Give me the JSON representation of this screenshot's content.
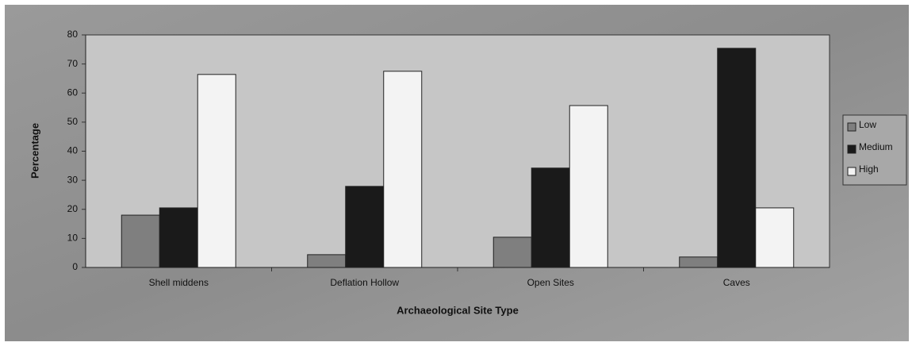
{
  "chart_data": {
    "type": "bar",
    "x_label": "Archaeological Site Type",
    "y_label": "Percentage",
    "categories": [
      "Shell middens",
      "Deflation Hollow",
      "Open Sites",
      "Caves"
    ],
    "series": [
      {
        "name": "Low",
        "color": "#7f7f7f",
        "values": [
          18,
          4.4,
          10.4,
          3.6
        ]
      },
      {
        "name": "Medium",
        "color": "#1a1a1a",
        "values": [
          20.5,
          27.9,
          34.2,
          75.4
        ]
      },
      {
        "name": "High",
        "color": "#f3f3f3",
        "values": [
          66.4,
          67.5,
          55.7,
          20.5
        ]
      }
    ],
    "ylim": [
      0,
      80
    ],
    "yticks": [
      0,
      10,
      20,
      30,
      40,
      50,
      60,
      70,
      80
    ],
    "grid": false,
    "legend": "right"
  }
}
